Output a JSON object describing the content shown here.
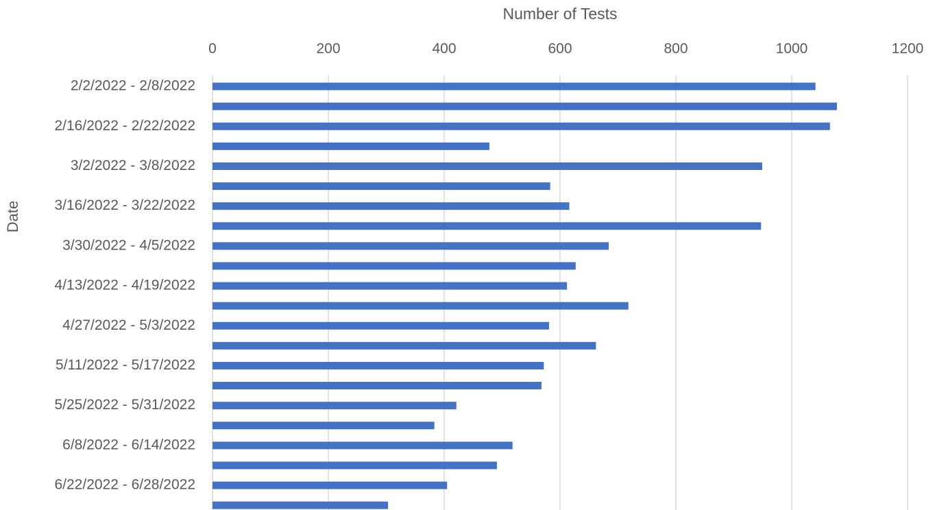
{
  "chart_data": {
    "type": "bar",
    "orientation": "horizontal",
    "x_label": "Number of Tests",
    "y_label": "Date",
    "categories": [
      "2/2/2022 - 2/8/2022",
      null,
      "2/16/2022 - 2/22/2022",
      null,
      "3/2/2022 - 3/8/2022",
      null,
      "3/16/2022 - 3/22/2022",
      null,
      "3/30/2022 - 4/5/2022",
      null,
      "4/13/2022 - 4/19/2022",
      null,
      "4/27/2022 - 5/3/2022",
      null,
      "5/11/2022 - 5/17/2022",
      null,
      "5/25/2022 - 5/31/2022",
      null,
      "6/8/2022 - 6/14/2022",
      null,
      "6/22/2022 - 6/28/2022",
      null
    ],
    "values": [
      1041,
      1078,
      1066,
      478,
      949,
      583,
      616,
      947,
      684,
      627,
      612,
      718,
      581,
      662,
      572,
      568,
      421,
      383,
      518,
      491,
      405,
      303
    ],
    "color": "#4472c4",
    "xlim": [
      0,
      1200
    ],
    "xticks": [
      0,
      200,
      400,
      600,
      800,
      1000,
      1200
    ],
    "grid": true
  }
}
